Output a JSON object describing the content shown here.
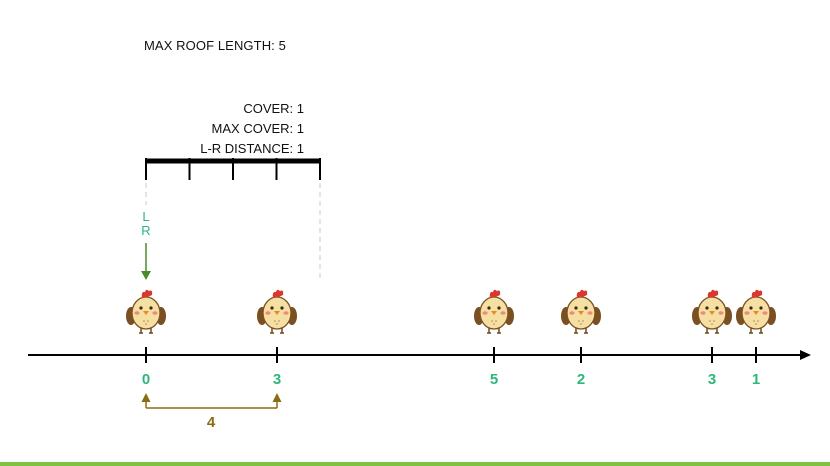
{
  "header": {
    "max_roof_length": "MAX ROOF LENGTH: 5"
  },
  "roof_info": {
    "cover": "COVER: 1",
    "max_cover": "MAX COVER: 1",
    "lr_distance": "L-R DISTANCE: 1"
  },
  "pointer": {
    "left_label": "L",
    "right_label": "R"
  },
  "chickens": [
    {
      "label": "0"
    },
    {
      "label": "3"
    },
    {
      "label": "5"
    },
    {
      "label": "2"
    },
    {
      "label": "3"
    },
    {
      "label": "1"
    }
  ],
  "gap": {
    "label": "4"
  },
  "colors": {
    "label_green": "#2fb67c",
    "pointer_green": "#4a8a2a",
    "gap_brown": "#8a6d10",
    "bar_green": "#7dc242"
  }
}
